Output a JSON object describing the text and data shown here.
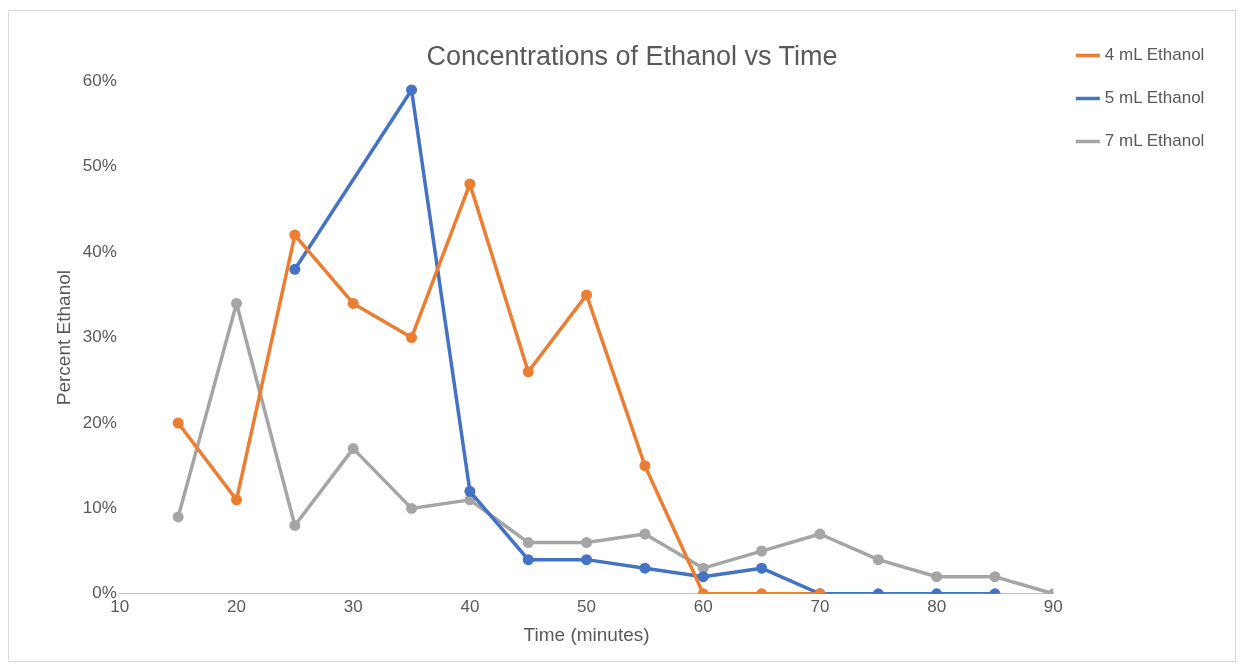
{
  "chart_data": {
    "type": "line",
    "title": "Concentrations of Ethanol vs Time",
    "xlabel": "Time (minutes)",
    "ylabel": "Percent Ethanol",
    "xlim": [
      10,
      90
    ],
    "xticks": [
      10,
      20,
      30,
      40,
      50,
      60,
      70,
      80,
      90
    ],
    "ylim": [
      0,
      60
    ],
    "yticks": [
      {
        "value": 0,
        "label": "0%"
      },
      {
        "value": 10,
        "label": "10%"
      },
      {
        "value": 20,
        "label": "20%"
      },
      {
        "value": 30,
        "label": "30%"
      },
      {
        "value": 40,
        "label": "40%"
      },
      {
        "value": 50,
        "label": "50%"
      },
      {
        "value": 60,
        "label": "60%"
      }
    ],
    "grid": false,
    "legend": "top right",
    "marker": "circle",
    "line_style": "solid",
    "series": [
      {
        "name": "4 mL Ethanol",
        "color": "#ed7d31",
        "x": [
          15,
          20,
          25,
          30,
          35,
          40,
          45,
          50,
          55,
          60,
          65,
          70
        ],
        "values": [
          20,
          11,
          42,
          34,
          30,
          48,
          26,
          35,
          15,
          0,
          0,
          0
        ]
      },
      {
        "name": "5 mL Ethanol",
        "color": "#4472c4",
        "x": [
          25,
          35,
          40,
          45,
          50,
          55,
          60,
          65,
          70,
          75,
          80,
          85
        ],
        "values": [
          38,
          59,
          12,
          4,
          4,
          3,
          2,
          3,
          0,
          0,
          0,
          0
        ]
      },
      {
        "name": "7 mL Ethanol",
        "color": "#a5a5a5",
        "x": [
          15,
          20,
          25,
          30,
          35,
          40,
          45,
          50,
          55,
          60,
          65,
          70,
          75,
          80,
          85,
          90
        ],
        "values": [
          9,
          34,
          8,
          17,
          10,
          11,
          6,
          6,
          7,
          3,
          5,
          7,
          4,
          2,
          2,
          0
        ]
      }
    ]
  }
}
